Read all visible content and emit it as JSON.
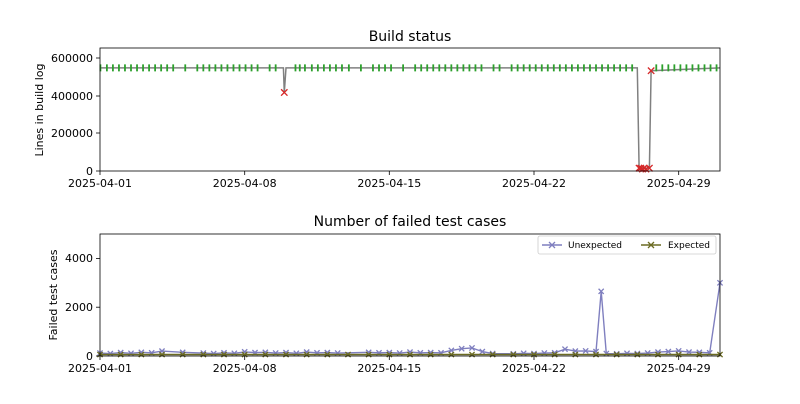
{
  "chart_data": [
    {
      "type": "line",
      "title": "Build status",
      "xlabel": "",
      "ylabel": "Lines in build log",
      "xlim": [
        "2025-04-01",
        "2025-05-01"
      ],
      "ylim": [
        0,
        650000
      ],
      "yticks": [
        0,
        200000,
        400000,
        600000
      ],
      "ytick_labels": [
        "0",
        "200000",
        "400000",
        "600000"
      ],
      "xticks": [
        "2025-04-01",
        "2025-04-08",
        "2025-04-15",
        "2025-04-22",
        "2025-04-29"
      ],
      "grid": false,
      "legend": false,
      "series": [
        {
          "line_color": "#808080",
          "x": [
            "2025-04-01",
            "2025-04-09",
            "2025-04-09 21:00",
            "2025-04-09 22:00",
            "2025-04-10",
            "2025-04-26",
            "2025-04-27",
            "2025-04-27 02:00",
            "2025-04-27 04:00",
            "2025-04-27 08:00",
            "2025-04-27 14:00",
            "2025-04-27 16:00",
            "2025-05-01"
          ],
          "y": [
            545000,
            545000,
            545000,
            415000,
            545000,
            545000,
            545000,
            15000,
            15000,
            15000,
            15000,
            530000,
            545000
          ]
        }
      ],
      "markers": {
        "success": {
          "color": "#2ca02c",
          "symbol": "|",
          "y": 545000,
          "x": [
            "2025-04-01 00:30",
            "2025-04-01 08:00",
            "2025-04-01 15:00",
            "2025-04-01 22:00",
            "2025-04-02 05:00",
            "2025-04-02 12:00",
            "2025-04-02 19:00",
            "2025-04-03 02:00",
            "2025-04-03 09:00",
            "2025-04-03 16:00",
            "2025-04-03 23:00",
            "2025-04-04 06:00",
            "2025-04-04 13:00",
            "2025-04-05 03:00",
            "2025-04-05 17:00",
            "2025-04-06 00:00",
            "2025-04-06 07:00",
            "2025-04-06 14:00",
            "2025-04-06 21:00",
            "2025-04-07 04:00",
            "2025-04-07 11:00",
            "2025-04-07 18:00",
            "2025-04-08 01:00",
            "2025-04-08 08:00",
            "2025-04-08 15:00",
            "2025-04-09 05:00",
            "2025-04-09 12:00",
            "2025-04-10 11:00",
            "2025-04-10 16:00",
            "2025-04-10 22:00",
            "2025-04-11 06:00",
            "2025-04-11 13:00",
            "2025-04-11 20:00",
            "2025-04-12 03:00",
            "2025-04-12 10:00",
            "2025-04-12 17:00",
            "2025-04-13 01:00",
            "2025-04-13 15:00",
            "2025-04-14 05:00",
            "2025-04-14 12:00",
            "2025-04-14 19:00",
            "2025-04-15 02:00",
            "2025-04-15 16:00",
            "2025-04-16 06:00",
            "2025-04-16 13:00",
            "2025-04-16 20:00",
            "2025-04-17 03:00",
            "2025-04-17 10:00",
            "2025-04-17 17:00",
            "2025-04-18 00:00",
            "2025-04-18 07:00",
            "2025-04-18 14:00",
            "2025-04-18 21:00",
            "2025-04-19 04:00",
            "2025-04-19 11:00",
            "2025-04-20 01:00",
            "2025-04-20 08:00",
            "2025-04-20 22:00",
            "2025-04-21 05:00",
            "2025-04-21 12:00",
            "2025-04-21 19:00",
            "2025-04-22 02:00",
            "2025-04-22 09:00",
            "2025-04-22 16:00",
            "2025-04-22 23:00",
            "2025-04-23 06:00",
            "2025-04-23 13:00",
            "2025-04-23 20:00",
            "2025-04-24 03:00",
            "2025-04-24 10:00",
            "2025-04-24 17:00",
            "2025-04-25 00:00",
            "2025-04-25 07:00",
            "2025-04-25 14:00",
            "2025-04-25 21:00",
            "2025-04-26 04:00",
            "2025-04-26 11:00",
            "2025-04-26 18:00",
            "2025-04-27 22:00",
            "2025-04-28 05:00",
            "2025-04-28 12:00",
            "2025-04-28 19:00",
            "2025-04-29 02:00",
            "2025-04-29 09:00",
            "2025-04-29 16:00",
            "2025-04-29 23:00",
            "2025-04-30 06:00",
            "2025-04-30 13:00",
            "2025-04-30 20:00"
          ]
        },
        "failure": {
          "color": "#d62728",
          "symbol": "x",
          "points": [
            {
              "x": "2025-04-09 22:00",
              "y": 415000
            },
            {
              "x": "2025-04-27 02:00",
              "y": 15000
            },
            {
              "x": "2025-04-27 04:00",
              "y": 15000
            },
            {
              "x": "2025-04-27 06:00",
              "y": 10000
            },
            {
              "x": "2025-04-27 08:00",
              "y": 15000
            },
            {
              "x": "2025-04-27 10:00",
              "y": 10000
            },
            {
              "x": "2025-04-27 14:00",
              "y": 15000
            },
            {
              "x": "2025-04-27 16:00",
              "y": 530000
            }
          ]
        }
      }
    },
    {
      "type": "line",
      "title": "Number of failed test cases",
      "xlabel": "",
      "ylabel": "Failed test cases",
      "xlim": [
        "2025-04-01",
        "2025-05-01"
      ],
      "ylim": [
        0,
        5000
      ],
      "yticks": [
        0,
        2000,
        4000
      ],
      "ytick_labels": [
        "0",
        "2000",
        "4000"
      ],
      "xticks": [
        "2025-04-01",
        "2025-04-08",
        "2025-04-15",
        "2025-04-22",
        "2025-04-29"
      ],
      "grid": false,
      "legend": "top-right",
      "series": [
        {
          "name": "Unexpected",
          "color": "#7f7fbf",
          "x": [
            "2025-04-01",
            "2025-04-01 12:00",
            "2025-04-02",
            "2025-04-02 12:00",
            "2025-04-03",
            "2025-04-03 12:00",
            "2025-04-04",
            "2025-04-05",
            "2025-04-06",
            "2025-04-06 12:00",
            "2025-04-07",
            "2025-04-07 12:00",
            "2025-04-08",
            "2025-04-08 12:00",
            "2025-04-09",
            "2025-04-09 12:00",
            "2025-04-10",
            "2025-04-10 12:00",
            "2025-04-11",
            "2025-04-11 12:00",
            "2025-04-12",
            "2025-04-12 12:00",
            "2025-04-14",
            "2025-04-14 12:00",
            "2025-04-15",
            "2025-04-15 12:00",
            "2025-04-16",
            "2025-04-16 12:00",
            "2025-04-17",
            "2025-04-17 12:00",
            "2025-04-18",
            "2025-04-18 12:00",
            "2025-04-19",
            "2025-04-19 12:00",
            "2025-04-20",
            "2025-04-21",
            "2025-04-21 12:00",
            "2025-04-22",
            "2025-04-22 12:00",
            "2025-04-23",
            "2025-04-23 12:00",
            "2025-04-24",
            "2025-04-24 12:00",
            "2025-04-25",
            "2025-04-25 06:00",
            "2025-04-25 12:00",
            "2025-04-26",
            "2025-04-26 12:00",
            "2025-04-27",
            "2025-04-27 12:00",
            "2025-04-28",
            "2025-04-28 12:00",
            "2025-04-29",
            "2025-04-29 12:00",
            "2025-04-30",
            "2025-04-30 12:00",
            "2025-05-01"
          ],
          "values": [
            120,
            100,
            140,
            110,
            150,
            130,
            200,
            150,
            120,
            100,
            130,
            110,
            170,
            140,
            150,
            120,
            140,
            110,
            160,
            130,
            140,
            120,
            150,
            130,
            140,
            120,
            160,
            130,
            140,
            130,
            230,
            300,
            330,
            180,
            100,
            90,
            110,
            100,
            120,
            130,
            280,
            200,
            210,
            180,
            2650,
            100,
            90,
            110,
            100,
            120,
            160,
            180,
            210,
            160,
            150,
            130,
            3000
          ]
        },
        {
          "name": "Expected",
          "color": "#6b6b23",
          "x": [
            "2025-04-01",
            "2025-04-02",
            "2025-04-03",
            "2025-04-04",
            "2025-04-05",
            "2025-04-06",
            "2025-04-07",
            "2025-04-08",
            "2025-04-09",
            "2025-04-10",
            "2025-04-11",
            "2025-04-12",
            "2025-04-13",
            "2025-04-14",
            "2025-04-15",
            "2025-04-16",
            "2025-04-17",
            "2025-04-18",
            "2025-04-19",
            "2025-04-20",
            "2025-04-21",
            "2025-04-22",
            "2025-04-23",
            "2025-04-24",
            "2025-04-25",
            "2025-04-26",
            "2025-04-27",
            "2025-04-28",
            "2025-04-29",
            "2025-04-30",
            "2025-05-01"
          ],
          "values": [
            60,
            60,
            60,
            60,
            60,
            60,
            60,
            60,
            60,
            60,
            60,
            60,
            60,
            60,
            60,
            60,
            60,
            60,
            60,
            60,
            60,
            60,
            60,
            60,
            60,
            60,
            60,
            60,
            60,
            60,
            60
          ]
        }
      ]
    }
  ]
}
